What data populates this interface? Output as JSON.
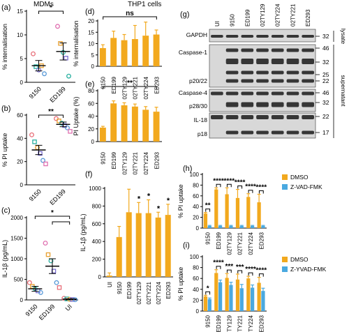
{
  "panels": {
    "a": {
      "letter": "(a)",
      "title": "MDMs"
    },
    "b": {
      "letter": "(b)"
    },
    "c": {
      "letter": "(c)"
    },
    "d": {
      "letter": "(d)",
      "title": "THP1 cells"
    },
    "e": {
      "letter": "(e)"
    },
    "f": {
      "letter": "(f)"
    },
    "g": {
      "letter": "(g)"
    },
    "h": {
      "letter": "(h)"
    },
    "i": {
      "letter": "(i)"
    }
  },
  "colors": {
    "dmso": "#f2a91e",
    "inhibitor": "#4aa9e0"
  },
  "blot": {
    "lanes": [
      "UI",
      "9150",
      "ED199",
      "02TY129",
      "02TY224",
      "02TY221",
      "ED293"
    ],
    "rows": [
      {
        "label": "GAPDH",
        "mw": [
          "32"
        ]
      },
      {
        "label": "Caspase-1",
        "mw": [
          "46",
          "32",
          "25",
          "22"
        ]
      },
      {
        "label": "p20/22",
        "mw": []
      },
      {
        "label": "Caspase-4",
        "mw": [
          "46",
          "32"
        ]
      },
      {
        "label": "p28/30",
        "mw": []
      },
      {
        "label": "IL-18",
        "mw": [
          "22"
        ]
      },
      {
        "label": "p18",
        "mw": [
          "17"
        ]
      }
    ],
    "side_labels": {
      "lysate": "lysate",
      "supernatant": "supernatant"
    }
  },
  "chart_data": [
    {
      "panel": "a",
      "type": "scatter",
      "ylabel": "% internalisation",
      "categories": [
        "9150",
        "ED199"
      ],
      "ylim": [
        0,
        15
      ],
      "yticks": [
        0,
        5,
        10,
        15
      ],
      "points": [
        [
          {
            "y": 6.0,
            "c": "#e8707a"
          },
          {
            "y": 3.3,
            "c": "#29b0a0"
          },
          {
            "y": 2.6,
            "c": "#7a6ed0"
          },
          {
            "y": 3.5,
            "c": "#e8a030"
          },
          {
            "y": 1.8,
            "c": "#5a9ad8"
          }
        ],
        [
          {
            "y": 11.8,
            "c": "#e070b0"
          },
          {
            "y": 8.2,
            "c": "#e8a030"
          },
          {
            "y": 6.3,
            "c": "#29b0a0"
          },
          {
            "y": 5.1,
            "c": "#7a6ed0"
          },
          {
            "y": 1.3,
            "c": "#29b0a0"
          }
        ]
      ],
      "means": [
        3.5,
        6.5
      ],
      "errors": [
        1.1,
        1.8
      ],
      "annotations": [
        {
          "text": "*",
          "from": 0,
          "to": 1
        }
      ]
    },
    {
      "panel": "b",
      "type": "scatter",
      "ylabel": "% PI uptake",
      "categories": [
        "9150",
        "ED199"
      ],
      "ylim": [
        0,
        60
      ],
      "yticks": [
        0,
        20,
        40,
        60
      ],
      "points": [
        [
          {
            "y": 43,
            "c": "#e8707a"
          },
          {
            "y": 37,
            "c": "#29b0a0"
          },
          {
            "y": 32,
            "c": "#e8a030"
          },
          {
            "y": 27,
            "c": "#7a6ed0"
          },
          {
            "y": 21,
            "c": "#5a9ad8"
          },
          {
            "y": 18,
            "c": "#e070b0"
          }
        ],
        [
          {
            "y": 57,
            "c": "#e8707a"
          },
          {
            "y": 55,
            "c": "#e8a030"
          },
          {
            "y": 53,
            "c": "#29b0a0"
          },
          {
            "y": 51,
            "c": "#7a6ed0"
          },
          {
            "y": 49,
            "c": "#5a9ad8"
          },
          {
            "y": 46,
            "c": "#e070b0"
          }
        ]
      ],
      "means": [
        30,
        52
      ],
      "errors": [
        4,
        2
      ],
      "annotations": [
        {
          "text": "**",
          "from": 0,
          "to": 1
        }
      ]
    },
    {
      "panel": "c",
      "type": "scatter",
      "ylabel": "IL-1β (pg/mL)",
      "categories": [
        "9150",
        "ED199",
        "UI"
      ],
      "ylim": [
        0,
        2000
      ],
      "yticks": [
        0,
        500,
        1000,
        1500,
        2000
      ],
      "points": [
        [
          {
            "y": 420,
            "c": "#e8707a"
          },
          {
            "y": 330,
            "c": "#e8a030"
          },
          {
            "y": 270,
            "c": "#29b0a0"
          },
          {
            "y": 220,
            "c": "#7a6ed0"
          },
          {
            "y": 180,
            "c": "#5a9ad8"
          }
        ],
        [
          {
            "y": 1380,
            "c": "#e070b0"
          },
          {
            "y": 1100,
            "c": "#e8a030"
          },
          {
            "y": 950,
            "c": "#29b0a0"
          },
          {
            "y": 700,
            "c": "#7a6ed0"
          },
          {
            "y": 420,
            "c": "#5a9ad8"
          },
          {
            "y": 300,
            "c": "#e8707a"
          }
        ],
        [
          {
            "y": 40,
            "c": "#e8707a"
          },
          {
            "y": 25,
            "c": "#29b0a0"
          },
          {
            "y": 15,
            "c": "#e8a030"
          },
          {
            "y": 10,
            "c": "#7a6ed0"
          },
          {
            "y": 5,
            "c": "#5a9ad8"
          }
        ]
      ],
      "means": [
        270,
        820,
        20
      ],
      "errors": [
        60,
        180,
        8
      ],
      "annotations": [
        {
          "text": "*",
          "from": 0,
          "to": 2,
          "level": 1
        },
        {
          "text": "",
          "from": 1,
          "to": 2,
          "level": 0
        }
      ]
    },
    {
      "panel": "d",
      "type": "bar",
      "ylabel": "% internalisation",
      "categories": [
        "9150",
        "ED199",
        "02TY129",
        "02TY221",
        "02TY224",
        "ED293"
      ],
      "values": [
        8,
        12.5,
        11.5,
        12,
        13.5,
        14
      ],
      "errors": [
        1.5,
        3,
        2.5,
        6,
        6,
        2
      ],
      "ylim": [
        0,
        20
      ],
      "yticks": [
        0,
        5,
        10,
        15,
        20
      ],
      "annotations": [
        {
          "text": "ns",
          "from": 0,
          "to": 5
        }
      ]
    },
    {
      "panel": "e",
      "type": "bar",
      "ylabel": "PI Uptake (%)",
      "categories": [
        "9150",
        "ED199",
        "02TY129",
        "02TY221",
        "02TY224",
        "ED293"
      ],
      "values": [
        22,
        60,
        57,
        55,
        50,
        47
      ],
      "errors": [
        2,
        4,
        4,
        4,
        5,
        7
      ],
      "ylim": [
        0,
        80
      ],
      "yticks": [
        0,
        20,
        40,
        60,
        80
      ],
      "annotations": [
        {
          "text": "**",
          "from": 0,
          "to": 5
        }
      ]
    },
    {
      "panel": "f",
      "type": "bar",
      "ylabel": "IL-1β (pg/mL)",
      "categories": [
        "UI",
        "9150",
        "ED199",
        "02TY129",
        "02TY221",
        "02TY224",
        "ED293"
      ],
      "values": [
        15,
        450,
        730,
        720,
        720,
        670,
        700
      ],
      "errors": [
        30,
        120,
        260,
        120,
        150,
        60,
        120
      ],
      "ylim": [
        0,
        1000
      ],
      "yticks": [
        0,
        200,
        400,
        600,
        800,
        1000
      ],
      "stars": [
        "",
        "",
        "",
        "*",
        "*",
        "*",
        "*"
      ]
    },
    {
      "panel": "h",
      "type": "bar",
      "ylabel": "% PI uptake",
      "categories": [
        "9150",
        "ED199",
        "02TY129",
        "02TY221",
        "02TY224",
        "ED293"
      ],
      "series": [
        {
          "name": "DMSO",
          "values": [
            27,
            72,
            63,
            56,
            58,
            48
          ],
          "errors": [
            2,
            3,
            12,
            16,
            6,
            15
          ]
        },
        {
          "name": "Z-VAD-FMK",
          "values": [
            4,
            4,
            4,
            4,
            4,
            4
          ],
          "errors": [
            1,
            1,
            1,
            1,
            1,
            1
          ]
        }
      ],
      "ylim": [
        0,
        100
      ],
      "yticks": [
        0,
        20,
        40,
        60,
        80,
        100
      ],
      "stars": [
        "**",
        "****",
        "****",
        "****",
        "****",
        "****"
      ],
      "legend": "top-right"
    },
    {
      "panel": "i",
      "type": "bar",
      "ylabel": "% PI uptake",
      "categories": [
        "9150",
        "ED199",
        "02TY129",
        "02TY221",
        "02TY224",
        "ED293"
      ],
      "series": [
        {
          "name": "DMSO",
          "values": [
            27,
            70,
            61,
            58,
            60,
            52
          ],
          "errors": [
            2,
            6,
            8,
            10,
            4,
            10
          ]
        },
        {
          "name": "Z-YVAD-FMK",
          "values": [
            22,
            53,
            48,
            42,
            43,
            37
          ],
          "errors": [
            2,
            4,
            5,
            7,
            5,
            5
          ]
        }
      ],
      "ylim": [
        0,
        100
      ],
      "yticks": [
        0,
        20,
        40,
        60,
        80,
        100
      ],
      "stars": [
        "*",
        "****",
        "***",
        "***",
        "****",
        "****"
      ],
      "legend": "top-right"
    }
  ]
}
